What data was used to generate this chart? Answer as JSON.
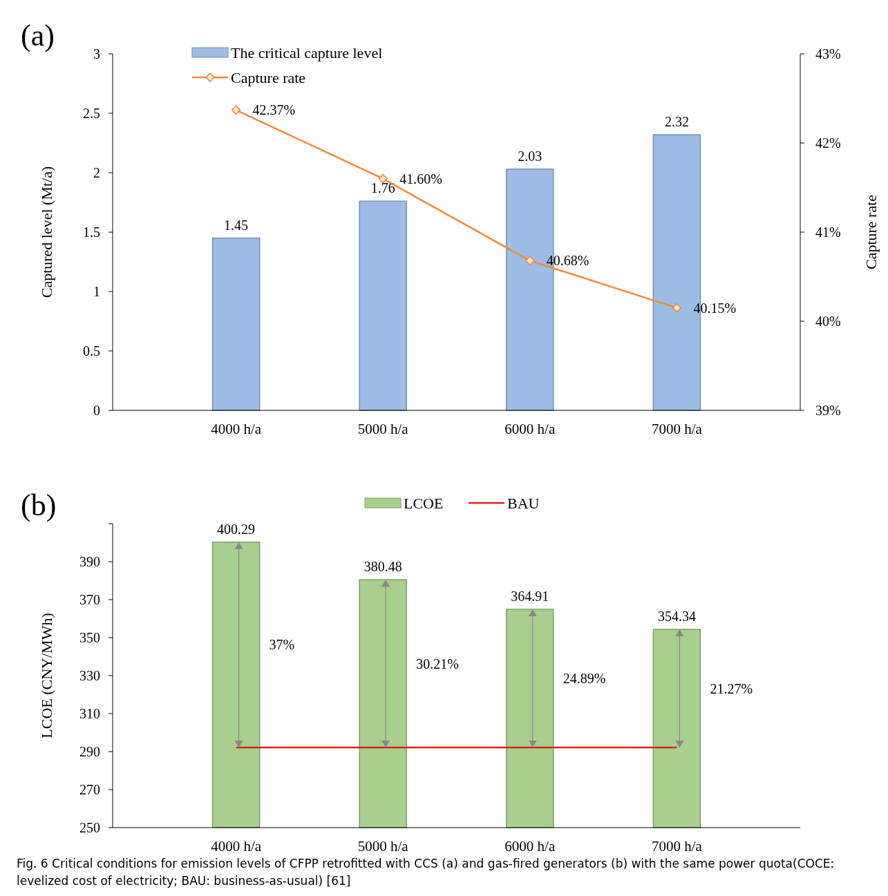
{
  "chart_data": [
    {
      "type": "bar",
      "title": "(a)",
      "categories": [
        "4000 h/a",
        "5000 h/a",
        "6000 h/a",
        "7000 h/a"
      ],
      "ylabel": "Captured  level (Mt/a)",
      "y2label": "Capture rate",
      "ylim": [
        0,
        3
      ],
      "yticks": [
        0,
        0.5,
        1,
        1.5,
        2,
        2.5,
        3
      ],
      "y2lim": [
        39,
        43
      ],
      "y2ticks": [
        {
          "value": 39,
          "label": "39%"
        },
        {
          "value": 40,
          "label": "40%"
        },
        {
          "value": 41,
          "label": "41%"
        },
        {
          "value": 42,
          "label": "42%"
        },
        {
          "value": 43,
          "label": "43%"
        }
      ],
      "legend": "top left",
      "grid": false,
      "series": [
        {
          "name": "The critical capture level",
          "type": "bar",
          "color": "#9dbde6",
          "values": [
            1.45,
            1.76,
            2.03,
            2.32
          ],
          "value_labels": [
            "1.45",
            "1.76",
            "2.03",
            "2.32"
          ]
        },
        {
          "name": "Capture rate",
          "type": "line",
          "axis": "y2",
          "color": "#f08a3c",
          "marker": "diamond",
          "values": [
            42.37,
            41.6,
            40.68,
            40.15
          ],
          "value_labels": [
            "42.37%",
            "41.60%",
            "40.68%",
            "40.15%"
          ]
        }
      ]
    },
    {
      "type": "bar",
      "title": "(b)",
      "categories": [
        "4000 h/a",
        "5000 h/a",
        "6000 h/a",
        "7000 h/a"
      ],
      "ylabel": "LCOE (CNY/MWh)",
      "ylim": [
        250,
        410
      ],
      "yticks": [
        250,
        270,
        290,
        310,
        330,
        350,
        370,
        390,
        {
          "value": 410,
          "label": null
        }
      ],
      "legend": "top",
      "grid": false,
      "series": [
        {
          "name": "LCOE",
          "type": "bar",
          "color": "#a9cf8f",
          "values": [
            400.29,
            380.48,
            364.91,
            354.34
          ],
          "value_labels": [
            "400.29",
            "380.48",
            "364.91",
            "354.34"
          ]
        },
        {
          "name": "BAU",
          "type": "line",
          "color": "#e02020",
          "marker": "none",
          "values": [
            292.2,
            292.2,
            292.2,
            292.2
          ]
        }
      ],
      "annotations": [
        "37%",
        "30.21%",
        "24.89%",
        "21.27%",
        "Fig. 6  Critical conditions for emission levels of CFPP retrofitted with CCS (a) and gas-fired generators (b) with the same power quota(COCE: levelized cost of electricity; BAU: business-as-usual) [61]"
      ]
    }
  ]
}
